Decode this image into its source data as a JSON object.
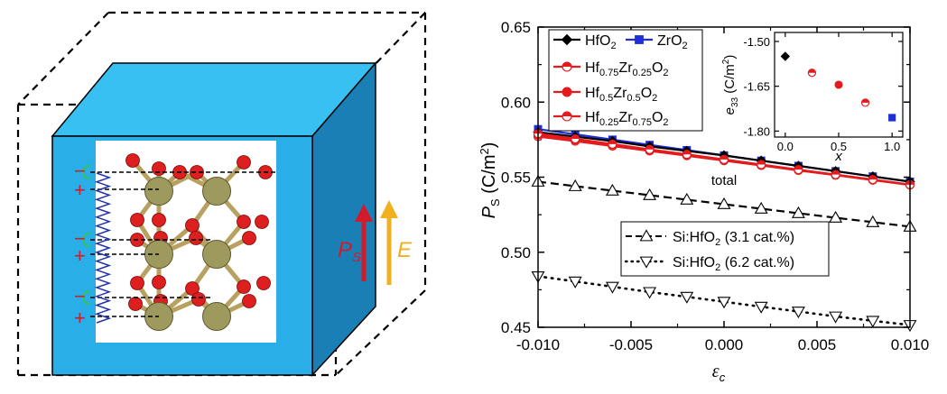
{
  "schematic": {
    "plus_sign": "+",
    "minus_sign": "−",
    "ps_label": "P",
    "ps_sub": "S",
    "e_label": "E",
    "colors": {
      "cube_front": "#29aee8",
      "cube_top": "#39c0f2",
      "cube_side": "#1a7fb4",
      "oxygen": "#dd1f1f",
      "metal": "#9e9a5e",
      "bond": "#b8a060",
      "spring": "#2233aa",
      "cap": "#33c060",
      "ps_arrow": "#d21a2a",
      "e_arrow": "#f0b020"
    }
  },
  "chart_data": [
    {
      "type": "line",
      "xlabel_symbol": "ε",
      "xlabel_sub": "c",
      "ylabel_symbol": "P",
      "ylabel_sub": "S",
      "ylabel_unit": " (C/m",
      "ylabel_sup": "2",
      "ylabel_close": ")",
      "xlim": [
        -0.01,
        0.01
      ],
      "ylim": [
        0.45,
        0.65
      ],
      "xticks": [
        -0.01,
        -0.005,
        0.0,
        0.005,
        0.01
      ],
      "xtick_labels": [
        "-0.010",
        "-0.005",
        "0.000",
        "0.005",
        "0.010"
      ],
      "yticks": [
        0.45,
        0.5,
        0.55,
        0.6,
        0.65
      ],
      "ytick_labels": [
        "0.45",
        "0.50",
        "0.55",
        "0.60",
        "0.65"
      ],
      "annotation_total": "total",
      "x": [
        -0.01,
        -0.008,
        -0.006,
        -0.004,
        -0.002,
        0.0,
        0.002,
        0.004,
        0.006,
        0.008,
        0.01
      ],
      "series": [
        {
          "name": "HfO2",
          "label_main": "HfO",
          "label_sub": "2",
          "color": "#000000",
          "marker": "diamond",
          "values": [
            0.58,
            0.577,
            0.574,
            0.5705,
            0.5675,
            0.5645,
            0.561,
            0.5575,
            0.554,
            0.5505,
            0.547
          ]
        },
        {
          "name": "ZrO2",
          "label_main": "ZrO",
          "label_sub": "2",
          "color": "#1f2ed6",
          "marker": "square",
          "values": [
            0.582,
            0.5785,
            0.575,
            0.5715,
            0.568,
            0.5645,
            0.561,
            0.5575,
            0.554,
            0.5505,
            0.547
          ]
        },
        {
          "name": "Hf0.75Zr0.25O2",
          "label_parts": [
            "Hf",
            "0.75",
            "Zr",
            "0.25",
            "O",
            "2"
          ],
          "color": "#e41a1c",
          "marker": "circle-half",
          "values": [
            0.579,
            0.5755,
            0.572,
            0.5685,
            0.5652,
            0.5618,
            0.5584,
            0.555,
            0.5517,
            0.5484,
            0.545
          ]
        },
        {
          "name": "Hf0.5Zr0.5O2",
          "label_parts": [
            "Hf",
            "0.5",
            "Zr",
            "0.5",
            "O",
            "2"
          ],
          "color": "#e41a1c",
          "marker": "circle",
          "values": [
            0.578,
            0.5747,
            0.5714,
            0.568,
            0.5648,
            0.5615,
            0.5582,
            0.555,
            0.5517,
            0.5484,
            0.545
          ]
        },
        {
          "name": "Hf0.25Zr0.75O2",
          "label_parts": [
            "Hf",
            "0.25",
            "Zr",
            "0.75",
            "O",
            "2"
          ],
          "color": "#e41a1c",
          "marker": "circle-half",
          "values": [
            0.577,
            0.574,
            0.5707,
            0.5675,
            0.5643,
            0.561,
            0.5578,
            0.5545,
            0.5513,
            0.548,
            0.5448
          ]
        },
        {
          "name": "Si:HfO2 (3.1 cat.%)",
          "label_pre": "Si:HfO",
          "label_sub": "2",
          "label_post": " (3.1 cat.%)",
          "color": "#000000",
          "marker": "triangle-up",
          "dash": "dashed",
          "values": [
            0.547,
            0.544,
            0.541,
            0.538,
            0.535,
            0.532,
            0.529,
            0.526,
            0.523,
            0.52,
            0.517
          ]
        },
        {
          "name": "Si:HfO2 (6.2 cat.%)",
          "label_pre": "Si:HfO",
          "label_sub": "2",
          "label_post": " (6.2 cat.%)",
          "color": "#000000",
          "marker": "triangle-down",
          "dash": "dotted",
          "values": [
            0.484,
            0.4805,
            0.477,
            0.4735,
            0.4703,
            0.467,
            0.4637,
            0.4605,
            0.4572,
            0.4543,
            0.4515
          ]
        }
      ]
    },
    {
      "type": "scatter",
      "xlabel": "x",
      "ylabel_symbol": "e",
      "ylabel_sub": "33",
      "ylabel_unit": " (C/m",
      "ylabel_sup": "2",
      "ylabel_close": ")",
      "xlim": [
        -0.1,
        1.1
      ],
      "ylim": [
        -1.82,
        -1.47
      ],
      "xticks": [
        0.0,
        0.5,
        1.0
      ],
      "xtick_labels": [
        "0.0",
        "0.5",
        "1.0"
      ],
      "yticks": [
        -1.5,
        -1.65,
        -1.8
      ],
      "ytick_labels": [
        "-1.50",
        "-1.65",
        "-1.80"
      ],
      "points": [
        {
          "x": 0.0,
          "y": -1.55,
          "marker": "diamond",
          "color": "#000000"
        },
        {
          "x": 0.25,
          "y": -1.605,
          "marker": "circle-half",
          "color": "#e41a1c"
        },
        {
          "x": 0.5,
          "y": -1.645,
          "marker": "circle",
          "color": "#e41a1c"
        },
        {
          "x": 0.75,
          "y": -1.705,
          "marker": "circle-half",
          "color": "#e41a1c"
        },
        {
          "x": 1.0,
          "y": -1.755,
          "marker": "square",
          "color": "#1f2ed6"
        }
      ]
    }
  ]
}
